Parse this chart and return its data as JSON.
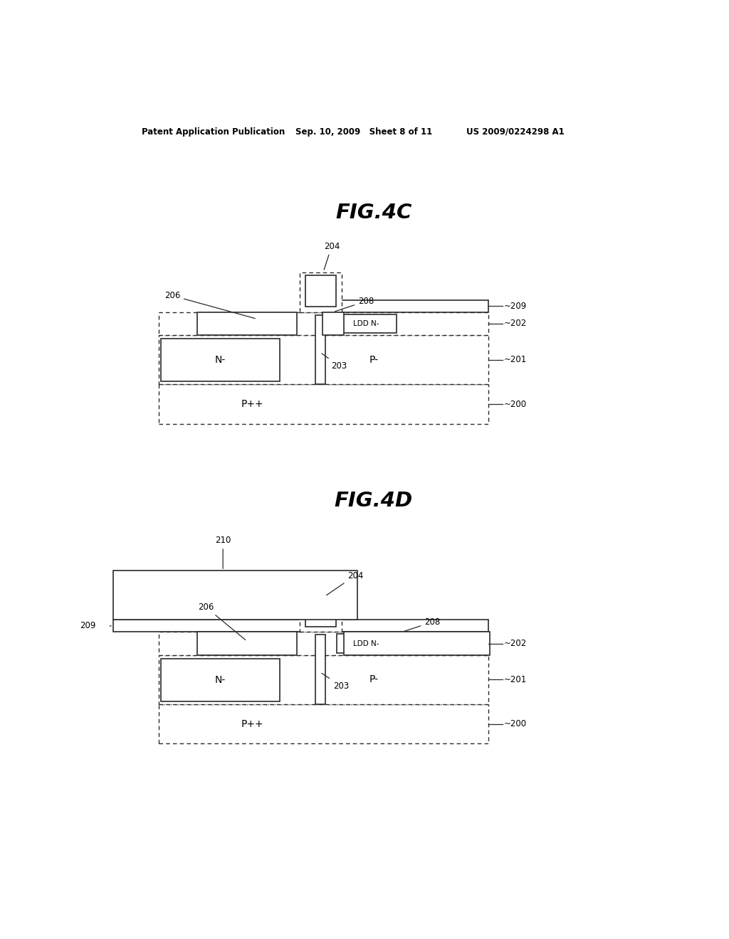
{
  "header_text": "Patent Application Publication",
  "header_date": "Sep. 10, 2009   Sheet 8 of 11",
  "header_patent": "US 2009/0224298 A1",
  "fig4c_title": "FIG.4C",
  "fig4d_title": "FIG.4D",
  "line_color": "#2a2a2a"
}
